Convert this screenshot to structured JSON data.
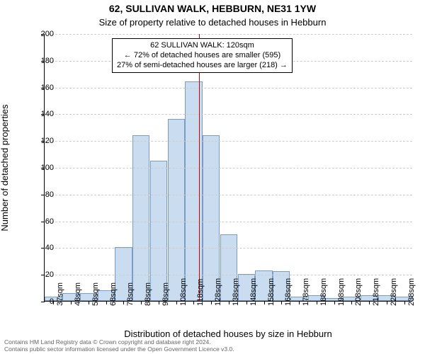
{
  "title_address": "62, SULLIVAN WALK, HEBBURN, NE31 1YW",
  "title_sub": "Size of property relative to detached houses in Hebburn",
  "ylabel": "Number of detached properties",
  "xlabel": "Distribution of detached houses by size in Hebburn",
  "annotation": {
    "line1": "62 SULLIVAN WALK: 120sqm",
    "line2": "← 72% of detached houses are smaller (595)",
    "line3": "27% of semi-detached houses are larger (218) →"
  },
  "footer": {
    "line1": "Contains HM Land Registry data © Crown copyright and database right 2024.",
    "line2": "Contains public sector information licensed under the Open Government Licence v3.0."
  },
  "chart": {
    "type": "histogram",
    "ylim": [
      0,
      200
    ],
    "ytick_step": 20,
    "bar_fill": "#c9dcf0",
    "bar_border": "#7a9cc6",
    "refline_color": "#cc0000",
    "refline_x_value": "120sqm",
    "grid_color": "#cccccc",
    "background": "#ffffff",
    "title_fontsize": 14,
    "sub_fontsize": 13,
    "label_fontsize": 13,
    "tick_fontsize": 11,
    "annotation_fontsize": 11,
    "x_categories": [
      "37sqm",
      "48sqm",
      "58sqm",
      "68sqm",
      "78sqm",
      "88sqm",
      "98sqm",
      "108sqm",
      "118sqm",
      "128sqm",
      "138sqm",
      "148sqm",
      "158sqm",
      "168sqm",
      "178sqm",
      "188sqm",
      "198sqm",
      "208sqm",
      "218sqm",
      "228sqm",
      "238sqm"
    ],
    "values": [
      3,
      6,
      6,
      8,
      40,
      124,
      105,
      136,
      164,
      124,
      50,
      20,
      23,
      22,
      3,
      4,
      2,
      3,
      4,
      4,
      3
    ],
    "refline_index": 8.3
  }
}
